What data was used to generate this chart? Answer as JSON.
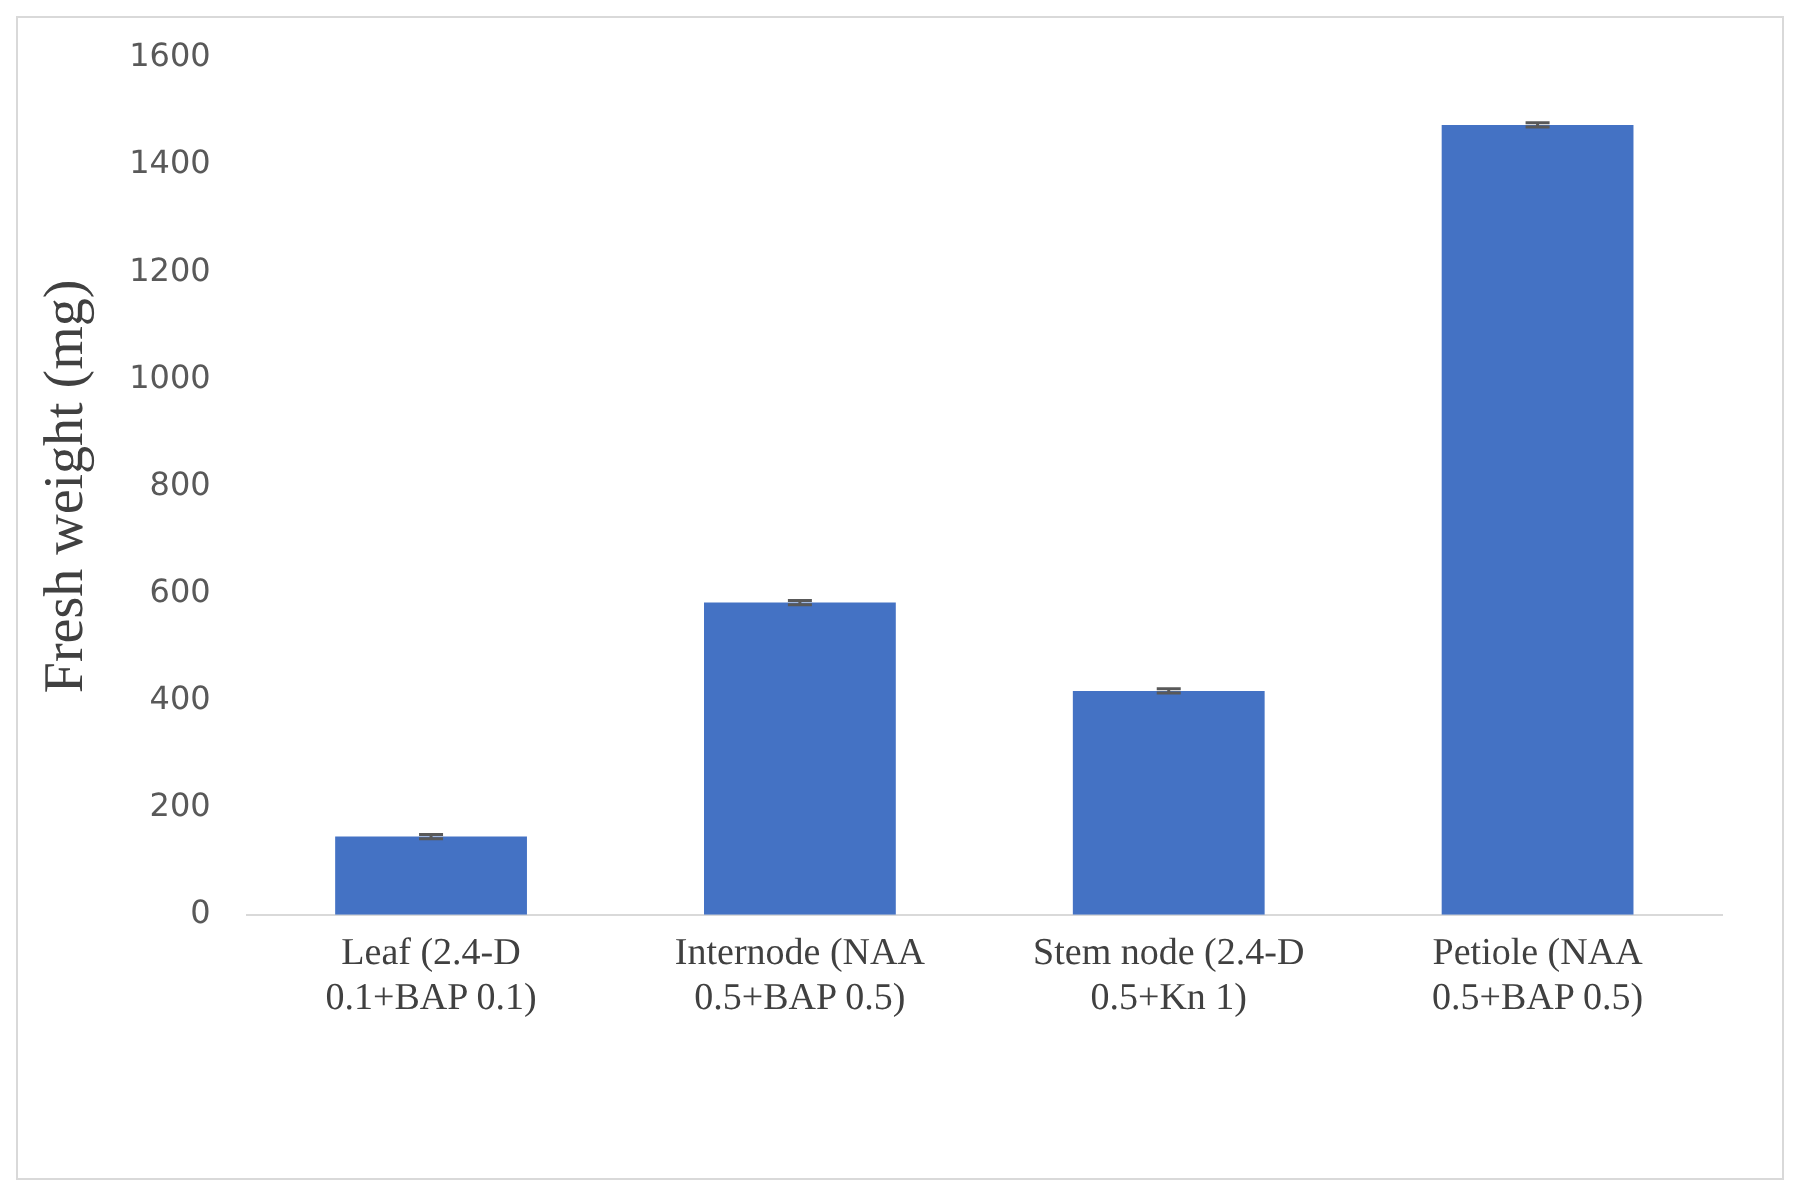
{
  "chart_data": {
    "type": "bar",
    "ylabel": "Fresh weight (mg)",
    "categories": [
      "Leaf (2.4-D 0.1+BAP 0.1)",
      "Internode (NAA 0.5+BAP 0.5)",
      "Stem node (2.4-D 0.5+Kn 1)",
      "Petiole (NAA 0.5+BAP 0.5)"
    ],
    "values": [
      146,
      583,
      418,
      1475
    ],
    "errors": [
      4,
      4,
      4,
      4
    ],
    "color": "#4472c4",
    "ylim": [
      0,
      1600
    ],
    "yticks": [
      0,
      200,
      400,
      600,
      800,
      1000,
      1200,
      1400,
      1600
    ],
    "grid": false,
    "legend": false
  }
}
